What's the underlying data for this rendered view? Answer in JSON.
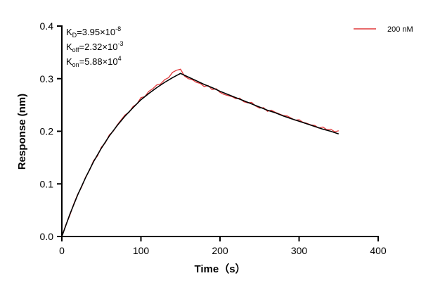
{
  "chart_data": {
    "type": "line",
    "title": "",
    "xlabel": "Time（s）",
    "ylabel": "Response (nm)",
    "xlim": [
      0,
      400
    ],
    "ylim": [
      0,
      0.4
    ],
    "xticks": [
      "0",
      "100",
      "200",
      "300",
      "400"
    ],
    "yticks": [
      "0.0",
      "0.1",
      "0.2",
      "0.3",
      "0.4"
    ],
    "grid": false,
    "legend_position": "top-right",
    "annotations": [
      {
        "main": "K",
        "sub": "D",
        "text": "=3.95×10",
        "sup": "-8"
      },
      {
        "main": "K",
        "sub": "off",
        "text": "=2.32×10",
        "sup": "-3"
      },
      {
        "main": "K",
        "sub": "on",
        "text": "=5.88×10",
        "sup": "4"
      }
    ],
    "series": [
      {
        "name": "200 nM",
        "color": "#e0383a",
        "x": [
          0,
          5,
          10,
          15,
          20,
          25,
          30,
          35,
          40,
          45,
          50,
          55,
          60,
          65,
          70,
          75,
          80,
          85,
          90,
          95,
          100,
          105,
          110,
          115,
          120,
          125,
          130,
          135,
          140,
          145,
          150,
          155,
          160,
          165,
          170,
          175,
          180,
          185,
          190,
          195,
          200,
          205,
          210,
          215,
          220,
          225,
          230,
          235,
          240,
          245,
          250,
          255,
          260,
          265,
          270,
          275,
          280,
          285,
          290,
          295,
          300,
          305,
          310,
          315,
          320,
          325,
          330,
          335,
          340,
          345,
          350
        ],
        "y": [
          0.0,
          0.022,
          0.04,
          0.062,
          0.08,
          0.094,
          0.113,
          0.126,
          0.144,
          0.153,
          0.17,
          0.178,
          0.193,
          0.2,
          0.212,
          0.222,
          0.231,
          0.236,
          0.247,
          0.252,
          0.264,
          0.266,
          0.276,
          0.281,
          0.288,
          0.29,
          0.298,
          0.302,
          0.312,
          0.316,
          0.318,
          0.305,
          0.3,
          0.298,
          0.293,
          0.291,
          0.285,
          0.287,
          0.279,
          0.281,
          0.274,
          0.27,
          0.268,
          0.266,
          0.262,
          0.263,
          0.256,
          0.254,
          0.255,
          0.248,
          0.244,
          0.245,
          0.238,
          0.24,
          0.236,
          0.233,
          0.23,
          0.229,
          0.225,
          0.221,
          0.222,
          0.217,
          0.215,
          0.212,
          0.211,
          0.206,
          0.208,
          0.203,
          0.204,
          0.199,
          0.201
        ]
      },
      {
        "color": "#000000",
        "x": [
          0,
          10,
          20,
          30,
          40,
          50,
          60,
          70,
          80,
          90,
          100,
          110,
          120,
          130,
          140,
          150,
          160,
          170,
          180,
          190,
          200,
          210,
          220,
          230,
          240,
          250,
          260,
          270,
          280,
          290,
          300,
          310,
          320,
          330,
          340,
          350
        ],
        "y": [
          0,
          0.042,
          0.079,
          0.112,
          0.142,
          0.168,
          0.191,
          0.211,
          0.229,
          0.245,
          0.26,
          0.272,
          0.283,
          0.293,
          0.302,
          0.31,
          0.303,
          0.296,
          0.289,
          0.283,
          0.276,
          0.27,
          0.264,
          0.258,
          0.252,
          0.246,
          0.24,
          0.235,
          0.229,
          0.224,
          0.219,
          0.214,
          0.209,
          0.204,
          0.2,
          0.195
        ]
      }
    ]
  }
}
